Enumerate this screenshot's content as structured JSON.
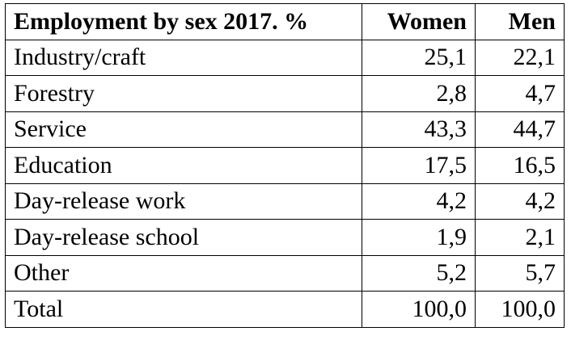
{
  "chart_data": {
    "type": "table",
    "title": "Employment by sex 2017. %",
    "columns": [
      "Women",
      "Men"
    ],
    "rows": [
      {
        "label": "Industry/craft",
        "values": [
          "25,1",
          "22,1"
        ]
      },
      {
        "label": "Forestry",
        "values": [
          "2,8",
          "4,7"
        ]
      },
      {
        "label": "Service",
        "values": [
          "43,3",
          "44,7"
        ]
      },
      {
        "label": "Education",
        "values": [
          "17,5",
          "16,5"
        ]
      },
      {
        "label": "Day-release work",
        "values": [
          "4,2",
          "4,2"
        ]
      },
      {
        "label": "Day-release school",
        "values": [
          "1,9",
          "2,1"
        ]
      },
      {
        "label": "Other",
        "values": [
          "5,2",
          "5,7"
        ]
      },
      {
        "label": "Total",
        "values": [
          "100,0",
          "100,0"
        ]
      }
    ]
  }
}
